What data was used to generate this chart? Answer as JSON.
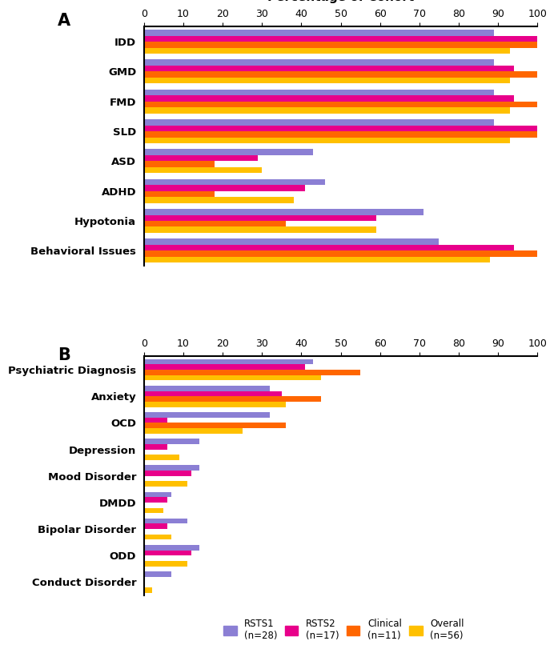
{
  "panel_A": {
    "categories": [
      "IDD",
      "GMD",
      "FMD",
      "SLD",
      "ASD",
      "ADHD",
      "Hypotonia",
      "Behavioral Issues"
    ],
    "series": {
      "RSTS1": [
        89,
        89,
        89,
        89,
        43,
        46,
        71,
        75
      ],
      "RSTS2": [
        100,
        94,
        94,
        100,
        29,
        41,
        59,
        94
      ],
      "Clinical": [
        100,
        100,
        100,
        100,
        18,
        18,
        36,
        100
      ],
      "Overall": [
        93,
        93,
        93,
        93,
        30,
        38,
        59,
        88
      ]
    }
  },
  "panel_B": {
    "categories": [
      "Psychiatric Diagnosis",
      "Anxiety",
      "OCD",
      "Depression",
      "Mood Disorder",
      "DMDD",
      "Bipolar Disorder",
      "ODD",
      "Conduct Disorder"
    ],
    "series": {
      "RSTS1": [
        43,
        32,
        32,
        14,
        14,
        7,
        11,
        14,
        7
      ],
      "RSTS2": [
        41,
        35,
        6,
        6,
        12,
        6,
        6,
        12,
        0
      ],
      "Clinical": [
        55,
        45,
        36,
        0,
        0,
        0,
        0,
        0,
        0
      ],
      "Overall": [
        45,
        36,
        25,
        9,
        11,
        5,
        7,
        11,
        2
      ]
    }
  },
  "colors": {
    "RSTS1": "#8B7FD4",
    "RSTS2": "#E8008A",
    "Clinical": "#FF6600",
    "Overall": "#FFC000"
  },
  "legend_labels": [
    "RSTS1\n(n=28)",
    "RSTS2\n(n=17)",
    "Clinical\n(n=11)",
    "Overall\n(n=56)"
  ],
  "figsize": [
    6.92,
    8.36
  ],
  "dpi": 100
}
